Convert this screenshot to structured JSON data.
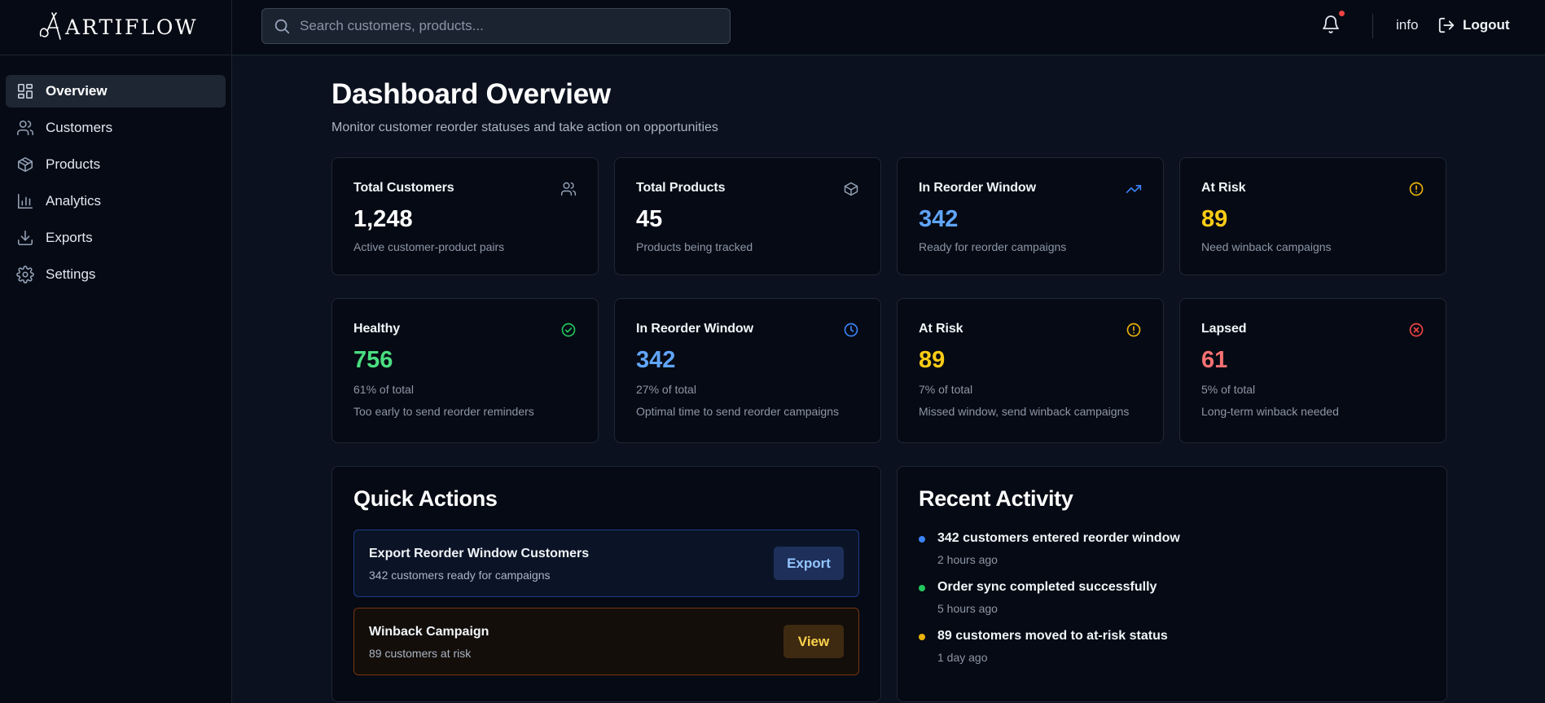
{
  "brand": {
    "name": "ARTIFLOW"
  },
  "sidebar": {
    "items": [
      {
        "label": "Overview",
        "icon": "dashboard-icon",
        "active": true
      },
      {
        "label": "Customers",
        "icon": "users-icon"
      },
      {
        "label": "Products",
        "icon": "box-icon"
      },
      {
        "label": "Analytics",
        "icon": "bar-chart-icon"
      },
      {
        "label": "Exports",
        "icon": "download-icon"
      },
      {
        "label": "Settings",
        "icon": "gear-icon"
      }
    ]
  },
  "header": {
    "search_placeholder": "Search customers, products...",
    "user_label": "info",
    "logout_label": "Logout",
    "notification_dot_color": "#ef4444"
  },
  "page": {
    "title": "Dashboard Overview",
    "subtitle": "Monitor customer reorder statuses and take action on opportunities"
  },
  "summary_cards": [
    {
      "label": "Total Customers",
      "value": "1,248",
      "desc": "Active customer-product pairs",
      "icon": "users-icon"
    },
    {
      "label": "Total Products",
      "value": "45",
      "desc": "Products being tracked",
      "icon": "box-icon"
    },
    {
      "label": "In Reorder Window",
      "value": "342",
      "desc": "Ready for reorder campaigns",
      "icon": "trending-up-icon"
    },
    {
      "label": "At Risk",
      "value": "89",
      "desc": "Need winback campaigns",
      "icon": "alert-circle-icon"
    }
  ],
  "status_cards": [
    {
      "label": "Healthy",
      "value": "756",
      "pct": "61% of total",
      "desc": "Too early to send reorder reminders",
      "icon": "check-circle-icon",
      "color": "#4ade80"
    },
    {
      "label": "In Reorder Window",
      "value": "342",
      "pct": "27% of total",
      "desc": "Optimal time to send reorder campaigns",
      "icon": "clock-icon",
      "color": "#60a5fa"
    },
    {
      "label": "At Risk",
      "value": "89",
      "pct": "7% of total",
      "desc": "Missed window, send winback campaigns",
      "icon": "alert-circle-icon",
      "color": "#facc15"
    },
    {
      "label": "Lapsed",
      "value": "61",
      "pct": "5% of total",
      "desc": "Long-term winback needed",
      "icon": "x-circle-icon",
      "color": "#f87171"
    }
  ],
  "quick_actions": {
    "title": "Quick Actions",
    "items": [
      {
        "title": "Export Reorder Window Customers",
        "subtitle": "342 customers ready for campaigns",
        "button": "Export"
      },
      {
        "title": "Winback Campaign",
        "subtitle": "89 customers at risk",
        "button": "View"
      }
    ]
  },
  "recent_activity": {
    "title": "Recent Activity",
    "items": [
      {
        "text": "342 customers entered reorder window",
        "time": "2 hours ago",
        "color": "#3b82f6"
      },
      {
        "text": "Order sync completed successfully",
        "time": "5 hours ago",
        "color": "#22c55e"
      },
      {
        "text": "89 customers moved to at-risk status",
        "time": "1 day ago",
        "color": "#eab308"
      }
    ]
  }
}
